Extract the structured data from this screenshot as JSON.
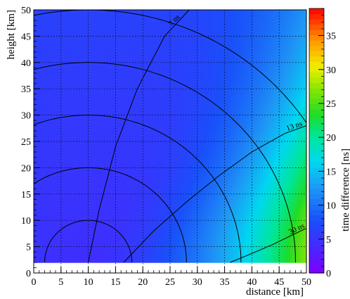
{
  "chart_data": {
    "type": "heatmap",
    "title": "",
    "xlabel": "distance [km]",
    "ylabel": "height [km]",
    "zlabel": "time difference [ns]",
    "xlim": [
      0,
      50
    ],
    "ylim": [
      0,
      50
    ],
    "zlim": [
      0,
      39
    ],
    "x_ticks": [
      0,
      5,
      10,
      15,
      20,
      25,
      30,
      35,
      40,
      45,
      50
    ],
    "y_ticks": [
      0,
      5,
      10,
      15,
      20,
      25,
      30,
      35,
      40,
      45,
      50
    ],
    "z_ticks": [
      0,
      5,
      10,
      15,
      20,
      25,
      30,
      35
    ],
    "grid": true,
    "data_y_min": 2,
    "circles_center": [
      10,
      2
    ],
    "circle_radii": [
      8,
      18,
      28,
      38,
      48
    ],
    "contours": [
      {
        "label": "7 ns",
        "points": [
          [
            10,
            2
          ],
          [
            12,
            12
          ],
          [
            15,
            24
          ],
          [
            19,
            35
          ],
          [
            24,
            45
          ],
          [
            28.5,
            50
          ]
        ]
      },
      {
        "label": "13 ns",
        "points": [
          [
            16.5,
            2
          ],
          [
            22,
            8
          ],
          [
            28,
            13.5
          ],
          [
            34,
            18.5
          ],
          [
            40,
            23
          ],
          [
            46,
            26.5
          ],
          [
            50,
            28
          ]
        ]
      },
      {
        "label": "30 ns",
        "points": [
          [
            36,
            2
          ],
          [
            40,
            3.7
          ],
          [
            44,
            5.5
          ],
          [
            47,
            7
          ],
          [
            50,
            8.5
          ]
        ]
      }
    ]
  }
}
